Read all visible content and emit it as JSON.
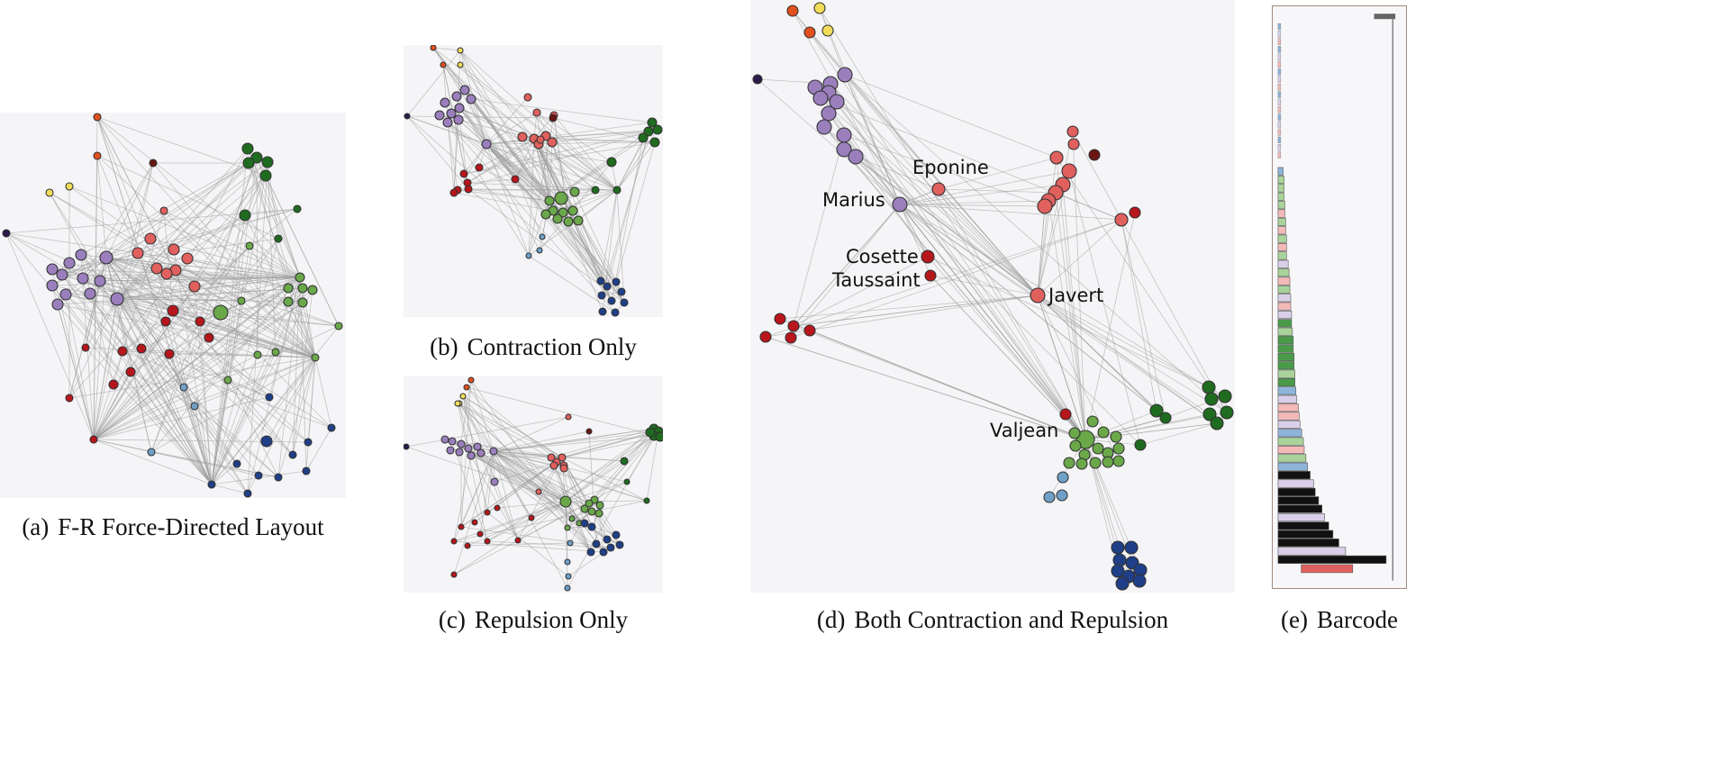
{
  "panels": [
    {
      "id": "a",
      "tag": "(a)",
      "caption": "F-R Force-Directed Layout"
    },
    {
      "id": "b",
      "tag": "(b)",
      "caption": "Contraction Only"
    },
    {
      "id": "c",
      "tag": "(c)",
      "caption": "Repulsion Only"
    },
    {
      "id": "d",
      "tag": "(d)",
      "caption": "Both Contraction and Repulsion"
    },
    {
      "id": "e",
      "tag": "(e)",
      "caption": "Barcode"
    }
  ],
  "node_labels": [
    "Eponine",
    "Marius",
    "Cosette",
    "Taussaint",
    "Javert",
    "Valjean"
  ],
  "colors": {
    "purple": "#9b7fbd",
    "red": "#e0605e",
    "darkred": "#b7161c",
    "green": "#6aa84a",
    "darkgreen": "#1f6b1f",
    "blue": "#1f3f88",
    "lightblue": "#6ea0c8",
    "yellow": "#f2dd5a",
    "orange": "#e2501e",
    "navy": "#2a1a4a",
    "brown": "#6a1414",
    "bar_black": "#111111",
    "bar_lavender": "#d9cfe8",
    "bar_pink": "#f3b9b9",
    "bar_green": "#a9d39a",
    "bar_blue": "#8fb4d9",
    "bar_darkgreen": "#4a9a4a",
    "bar_red": "#e06060"
  }
}
